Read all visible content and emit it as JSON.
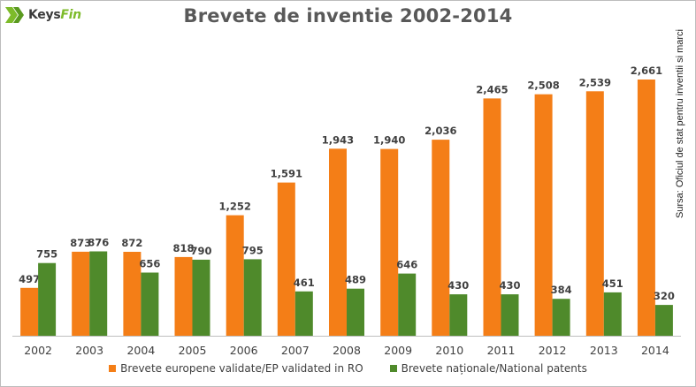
{
  "brand": {
    "name_part1": "Keys",
    "name_part2": "Fin",
    "icon": "keysfin-logo-icon"
  },
  "source_note": "Sursa: Oficiul de stat pentru inventii si marci",
  "colors": {
    "series_european": "#F47E17",
    "series_national": "#4F8A2B",
    "title": "#595959"
  },
  "chart_data": {
    "type": "bar",
    "title": "Brevete de inventie 2002-2014",
    "categories": [
      "2002",
      "2003",
      "2004",
      "2005",
      "2006",
      "2007",
      "2008",
      "2009",
      "2010",
      "2011",
      "2012",
      "2013",
      "2014"
    ],
    "series": [
      {
        "name": "Brevete europene validate/EP validated in RO",
        "values": [
          497,
          873,
          872,
          818,
          1252,
          1591,
          1943,
          1940,
          2036,
          2465,
          2508,
          2539,
          2661
        ],
        "labels": [
          "497",
          "873",
          "872",
          "818",
          "1,252",
          "1,591",
          "1,943",
          "1,940",
          "2,036",
          "2,465",
          "2,508",
          "2,539",
          "2,661"
        ]
      },
      {
        "name": "Brevete naționale/National patents",
        "values": [
          755,
          876,
          656,
          790,
          795,
          461,
          489,
          646,
          430,
          430,
          384,
          451,
          320
        ],
        "labels": [
          "755",
          "876",
          "656",
          "790",
          "795",
          "461",
          "489",
          "646",
          "430",
          "430",
          "384",
          "451",
          "320"
        ]
      }
    ],
    "ylim": [
      0,
      2900
    ],
    "grid": false,
    "legend_position": "bottom",
    "xlabel": "",
    "ylabel": ""
  }
}
